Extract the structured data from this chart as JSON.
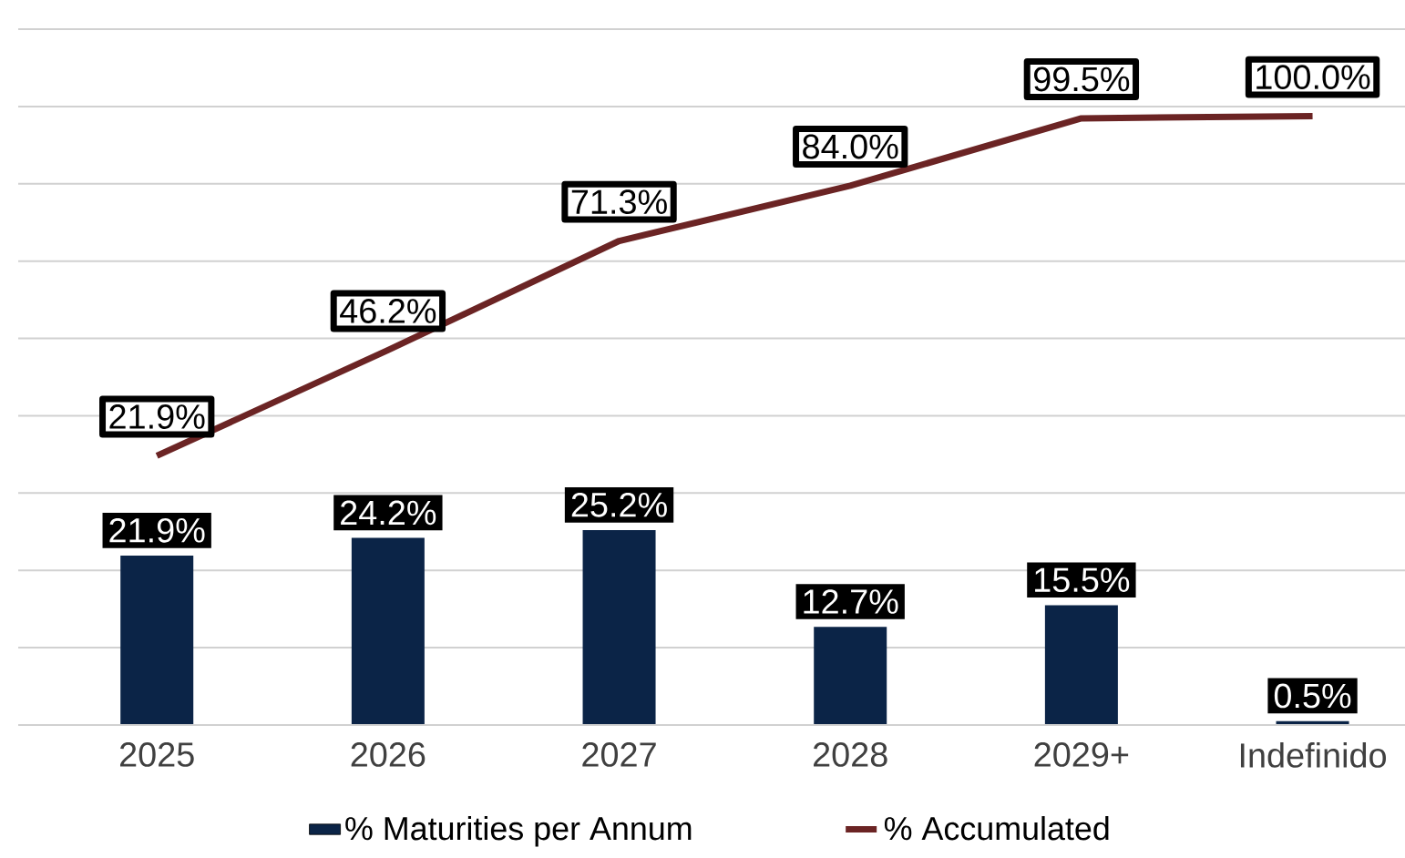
{
  "chart_data": {
    "type": "bar",
    "categories": [
      "2025",
      "2026",
      "2027",
      "2028",
      "2029+",
      "Indefinido"
    ],
    "series": [
      {
        "name": "% Maturities per Annum",
        "color": "#0b2447",
        "values": [
          21.9,
          24.2,
          25.2,
          12.7,
          15.5,
          0.5
        ],
        "value_labels": [
          "21.9%",
          "24.2%",
          "25.2%",
          "12.7%",
          "15.5%",
          "0.5%"
        ]
      },
      {
        "name": "% Accumulated",
        "type": "line",
        "axis": "y2",
        "color": "#6b2424",
        "values": [
          21.9,
          46.2,
          71.3,
          84.0,
          99.5,
          100.0
        ],
        "value_labels": [
          "21.9%",
          "46.2%",
          "71.3%",
          "84.0%",
          "99.5%",
          "100.0%"
        ]
      }
    ],
    "ylim": [
      0,
      90
    ],
    "yticks": [
      {
        "value": 0,
        "label": null
      },
      {
        "value": 10,
        "label": null
      },
      {
        "value": 20,
        "label": null
      },
      {
        "value": 30,
        "label": null
      },
      {
        "value": 40,
        "label": null
      },
      {
        "value": 50,
        "label": null
      },
      {
        "value": 60,
        "label": null
      },
      {
        "value": 70,
        "label": null
      },
      {
        "value": 80,
        "label": null
      },
      {
        "value": 90,
        "label": null
      }
    ],
    "y2lim": [
      -40,
      120
    ],
    "y2ticks": [
      {
        "value": -40,
        "label": null
      },
      {
        "value": 120,
        "label": null
      }
    ],
    "grid": "y",
    "legend": "bottom",
    "tick_labels": "x"
  }
}
